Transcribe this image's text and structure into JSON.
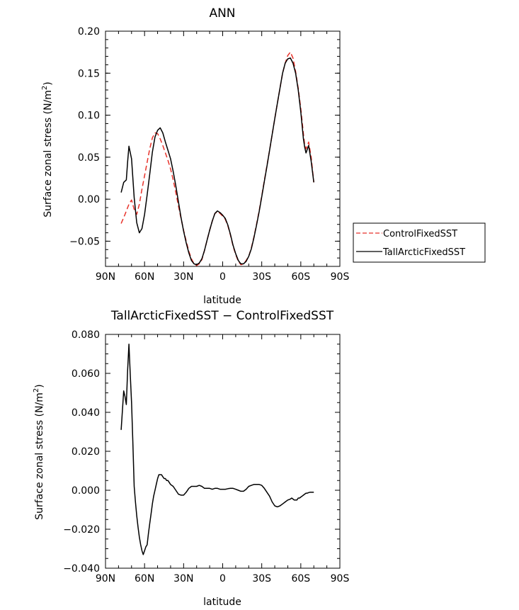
{
  "chart_data": [
    {
      "type": "line",
      "title": "ANN",
      "xlabel": "latitude",
      "ylabel_main": "Surface zonal stress (N/m",
      "ylabel_sup": "2",
      "ylabel_end": ")",
      "xlim": [
        90,
        -90
      ],
      "ylim": [
        -0.08,
        0.2
      ],
      "xticks": [
        90,
        60,
        30,
        0,
        -30,
        -60,
        -90
      ],
      "xtick_labels": [
        "90N",
        "60N",
        "30N",
        "0",
        "30S",
        "60S",
        "90S"
      ],
      "yticks": [
        -0.05,
        0.0,
        0.05,
        0.1,
        0.15,
        0.2
      ],
      "ytick_labels": [
        "−0.05",
        "0.00",
        "0.05",
        "0.10",
        "0.15",
        "0.20"
      ],
      "legend_position": "right",
      "series": [
        {
          "name": "ControlFixedSST",
          "color": "#e8322a",
          "dash": "dashed",
          "x": [
            78,
            75,
            72,
            70,
            68,
            66,
            64,
            62,
            60,
            58,
            56,
            54,
            52,
            50,
            48,
            46,
            44,
            42,
            40,
            38,
            36,
            34,
            32,
            30,
            28,
            26,
            24,
            22,
            20,
            18,
            16,
            14,
            12,
            10,
            8,
            6,
            4,
            2,
            0,
            -2,
            -4,
            -6,
            -8,
            -10,
            -12,
            -14,
            -16,
            -18,
            -20,
            -22,
            -24,
            -26,
            -28,
            -30,
            -32,
            -34,
            -36,
            -38,
            -40,
            -42,
            -44,
            -46,
            -48,
            -50,
            -52,
            -54,
            -56,
            -58,
            -60,
            -62,
            -63,
            -64,
            -66,
            -68,
            -70
          ],
          "y": [
            -0.029,
            -0.018,
            -0.006,
            -0.001,
            -0.012,
            -0.018,
            -0.006,
            0.012,
            0.028,
            0.044,
            0.06,
            0.073,
            0.079,
            0.078,
            0.072,
            0.064,
            0.055,
            0.046,
            0.036,
            0.023,
            0.008,
            -0.008,
            -0.023,
            -0.037,
            -0.05,
            -0.062,
            -0.071,
            -0.077,
            -0.079,
            -0.077,
            -0.072,
            -0.061,
            -0.049,
            -0.037,
            -0.026,
            -0.017,
            -0.015,
            -0.017,
            -0.02,
            -0.024,
            -0.032,
            -0.043,
            -0.056,
            -0.066,
            -0.074,
            -0.078,
            -0.077,
            -0.073,
            -0.068,
            -0.058,
            -0.045,
            -0.03,
            -0.014,
            0.004,
            0.022,
            0.04,
            0.058,
            0.077,
            0.096,
            0.114,
            0.132,
            0.15,
            0.162,
            0.171,
            0.175,
            0.168,
            0.152,
            0.132,
            0.108,
            0.078,
            0.065,
            0.06,
            0.068,
            0.05,
            0.02
          ]
        },
        {
          "name": "TallArcticFixedSST",
          "color": "#000000",
          "dash": "solid",
          "x": [
            78,
            76,
            74,
            73,
            72,
            70,
            68,
            66,
            64,
            62,
            60,
            58,
            56,
            54,
            52,
            50,
            48,
            46,
            44,
            42,
            40,
            38,
            36,
            34,
            32,
            30,
            28,
            26,
            24,
            22,
            20,
            18,
            16,
            14,
            12,
            10,
            8,
            6,
            4,
            2,
            0,
            -2,
            -4,
            -6,
            -8,
            -10,
            -12,
            -14,
            -16,
            -18,
            -20,
            -22,
            -24,
            -26,
            -28,
            -30,
            -32,
            -34,
            -36,
            -38,
            -40,
            -42,
            -44,
            -46,
            -48,
            -50,
            -52,
            -54,
            -56,
            -58,
            -60,
            -62,
            -63,
            -64,
            -66,
            -68,
            -70
          ],
          "y": [
            0.008,
            0.02,
            0.023,
            0.045,
            0.063,
            0.048,
            0.002,
            -0.028,
            -0.04,
            -0.035,
            -0.018,
            0.005,
            0.03,
            0.056,
            0.074,
            0.082,
            0.085,
            0.079,
            0.068,
            0.058,
            0.048,
            0.033,
            0.016,
            -0.003,
            -0.022,
            -0.038,
            -0.052,
            -0.064,
            -0.073,
            -0.077,
            -0.078,
            -0.076,
            -0.071,
            -0.061,
            -0.049,
            -0.037,
            -0.026,
            -0.017,
            -0.014,
            -0.016,
            -0.019,
            -0.023,
            -0.031,
            -0.042,
            -0.055,
            -0.065,
            -0.073,
            -0.077,
            -0.077,
            -0.074,
            -0.068,
            -0.059,
            -0.046,
            -0.031,
            -0.015,
            0.003,
            0.021,
            0.039,
            0.058,
            0.077,
            0.096,
            0.114,
            0.132,
            0.15,
            0.162,
            0.167,
            0.168,
            0.162,
            0.15,
            0.13,
            0.104,
            0.072,
            0.062,
            0.055,
            0.064,
            0.045,
            0.02
          ]
        }
      ]
    },
    {
      "type": "line",
      "title": "TallArcticFixedSST − ControlFixedSST",
      "xlabel": "latitude",
      "ylabel_main": "Surface zonal stress (N/m",
      "ylabel_sup": "2",
      "ylabel_end": ")",
      "xlim": [
        90,
        -90
      ],
      "ylim": [
        -0.04,
        0.08
      ],
      "xticks": [
        90,
        60,
        30,
        0,
        -30,
        -60,
        -90
      ],
      "xtick_labels": [
        "90N",
        "60N",
        "30N",
        "0",
        "30S",
        "60S",
        "90S"
      ],
      "yticks": [
        -0.04,
        -0.02,
        0.0,
        0.02,
        0.04,
        0.06,
        0.08
      ],
      "ytick_labels": [
        "−0.040",
        "−0.020",
        "0.000",
        "0.020",
        "0.040",
        "0.060",
        "0.080"
      ],
      "series": [
        {
          "color": "#000000",
          "dash": "solid",
          "x": [
            78,
            76,
            75,
            74,
            73,
            72,
            71,
            70,
            69,
            68,
            67,
            66,
            65,
            64,
            63,
            62,
            61,
            60,
            59,
            58,
            57,
            56,
            55,
            54,
            53,
            52,
            51,
            50,
            49,
            48,
            47,
            46,
            45,
            44,
            43,
            42,
            40,
            38,
            36,
            34,
            32,
            30,
            28,
            26,
            24,
            22,
            20,
            18,
            16,
            14,
            12,
            10,
            8,
            6,
            4,
            2,
            0,
            -2,
            -4,
            -6,
            -8,
            -10,
            -12,
            -14,
            -16,
            -18,
            -20,
            -22,
            -24,
            -26,
            -28,
            -30,
            -32,
            -34,
            -36,
            -38,
            -40,
            -42,
            -44,
            -46,
            -48,
            -50,
            -52,
            -53,
            -54,
            -55,
            -56,
            -57,
            -58,
            -59,
            -60,
            -61,
            -62,
            -63,
            -64,
            -65,
            -66,
            -67,
            -68,
            -69,
            -70
          ],
          "y": [
            0.031,
            0.051,
            0.048,
            0.044,
            0.062,
            0.075,
            0.06,
            0.045,
            0.025,
            0.002,
            -0.006,
            -0.013,
            -0.019,
            -0.024,
            -0.028,
            -0.031,
            -0.033,
            -0.031,
            -0.029,
            -0.028,
            -0.022,
            -0.017,
            -0.012,
            -0.007,
            -0.003,
            0.0,
            0.003,
            0.006,
            0.008,
            0.008,
            0.008,
            0.007,
            0.006,
            0.006,
            0.005,
            0.005,
            0.003,
            0.002,
            0.0,
            -0.002,
            -0.0025,
            -0.0025,
            -0.001,
            0.001,
            0.002,
            0.002,
            0.002,
            0.0025,
            0.002,
            0.001,
            0.001,
            0.001,
            0.0005,
            0.001,
            0.001,
            0.0005,
            0.0005,
            0.0005,
            0.0008,
            0.001,
            0.001,
            0.0005,
            0.0,
            -0.0005,
            -0.0005,
            0.0005,
            0.002,
            0.0025,
            0.003,
            0.003,
            0.003,
            0.0025,
            0.001,
            -0.001,
            -0.003,
            -0.006,
            -0.008,
            -0.0085,
            -0.008,
            -0.007,
            -0.006,
            -0.005,
            -0.0045,
            -0.004,
            -0.0045,
            -0.005,
            -0.005,
            -0.005,
            -0.004,
            -0.004,
            -0.0035,
            -0.003,
            -0.0025,
            -0.002,
            -0.0015,
            -0.0015,
            -0.0012,
            -0.001,
            -0.001,
            -0.001,
            -0.001
          ]
        }
      ]
    }
  ]
}
